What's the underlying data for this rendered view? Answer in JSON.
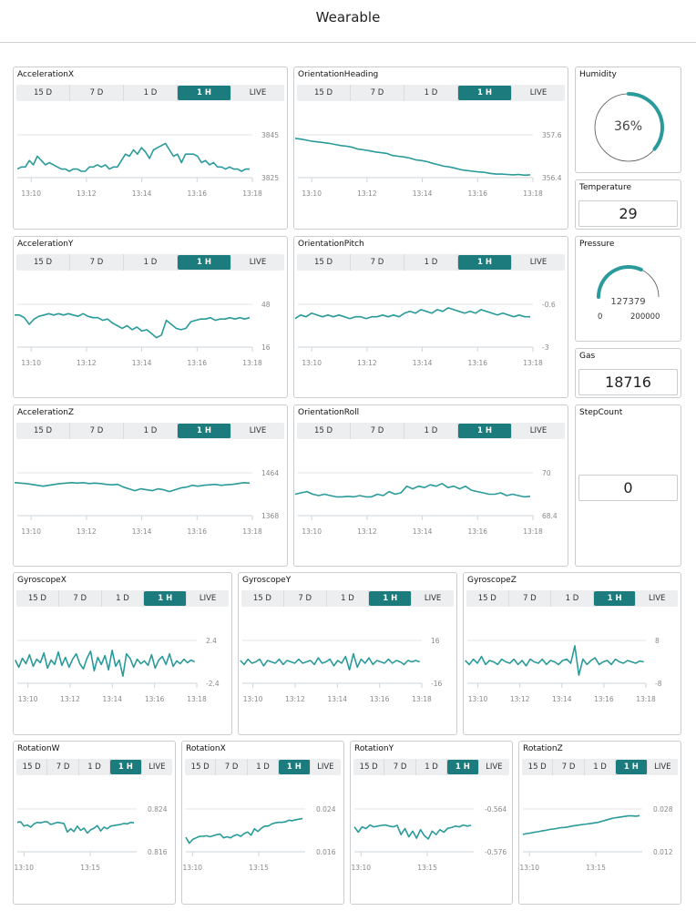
{
  "header": {
    "title": "Wearable"
  },
  "tabs": [
    "15 D",
    "7 D",
    "1 D",
    "1 H",
    "LIVE"
  ],
  "active_tab": "1 H",
  "colors": {
    "accent": "#1b7b7d",
    "line": "#2a9a9a",
    "grid": "#dfe3e5"
  },
  "charts": [
    {
      "title": "AccelerationX",
      "ymin_label": "3825",
      "ymax_label": "3845",
      "ylim": [
        3825,
        3845
      ],
      "xlim": [
        9.5,
        18
      ],
      "x_ticks": [
        "13:10",
        "13:12",
        "13:14",
        "13:16",
        "13:18"
      ],
      "x_tick_values": [
        10,
        12,
        14,
        16,
        18
      ],
      "x_range": [
        9.5,
        17.9
      ],
      "values": [
        3829,
        3830,
        3830,
        3833,
        3831,
        3835,
        3833,
        3831,
        3832,
        3831,
        3830,
        3829,
        3829,
        3828,
        3829,
        3829,
        3828,
        3828,
        3830,
        3830,
        3831,
        3830,
        3831,
        3829,
        3830,
        3830,
        3833,
        3836,
        3835,
        3838,
        3836,
        3839,
        3837,
        3834,
        3838,
        3839,
        3840,
        3841,
        3838,
        3835,
        3836,
        3832,
        3836,
        3836,
        3836,
        3835,
        3832,
        3833,
        3831,
        3832,
        3830,
        3830,
        3829,
        3830,
        3829,
        3829,
        3828,
        3829,
        3829
      ],
      "type": "line"
    },
    {
      "title": "OrientationHeading",
      "ymin_label": "356.4",
      "ymax_label": "357.6",
      "ylim": [
        356.4,
        357.6
      ],
      "xlim": [
        9.5,
        18
      ],
      "x_ticks": [
        "13:10",
        "13:12",
        "13:14",
        "13:16",
        "13:18"
      ],
      "x_tick_values": [
        10,
        12,
        14,
        16,
        18
      ],
      "x_range": [
        9.4,
        17.9
      ],
      "values": [
        357.5,
        357.48,
        357.45,
        357.42,
        357.4,
        357.38,
        357.36,
        357.33,
        357.3,
        357.28,
        357.25,
        357.2,
        357.18,
        357.15,
        357.12,
        357.1,
        357.08,
        357.02,
        357.0,
        356.98,
        356.95,
        356.9,
        356.88,
        356.85,
        356.8,
        356.76,
        356.72,
        356.7,
        356.66,
        356.62,
        356.6,
        356.58,
        356.56,
        356.55,
        356.52,
        356.5,
        356.5,
        356.49,
        356.48,
        356.49,
        356.47,
        356.48
      ],
      "type": "line"
    },
    {
      "title": "AccelerationY",
      "ymin_label": "16",
      "ymax_label": "48",
      "ylim": [
        16,
        48
      ],
      "xlim": [
        9.5,
        18
      ],
      "x_ticks": [
        "13:10",
        "13:12",
        "13:14",
        "13:16",
        "13:18"
      ],
      "x_tick_values": [
        10,
        12,
        14,
        16,
        18
      ],
      "x_range": [
        9.4,
        17.9
      ],
      "values": [
        40,
        40,
        38,
        33,
        37,
        39,
        40,
        41,
        40,
        41,
        40,
        41,
        40,
        39,
        41,
        39,
        38,
        38,
        36,
        37,
        34,
        32,
        30,
        32,
        29,
        31,
        28,
        29,
        26,
        23,
        25,
        36,
        33,
        30,
        29,
        30,
        35,
        36,
        37,
        37,
        38,
        36,
        37,
        37,
        38,
        37,
        38,
        37,
        38
      ],
      "type": "line"
    },
    {
      "title": "OrientationPitch",
      "ymin_label": "-3",
      "ymax_label": "-0.6",
      "ylim": [
        -3,
        -0.6
      ],
      "xlim": [
        9.5,
        18
      ],
      "x_ticks": [
        "13:10",
        "13:12",
        "13:14",
        "13:16",
        "13:18"
      ],
      "x_tick_values": [
        10,
        12,
        14,
        16,
        18
      ],
      "x_range": [
        9.4,
        17.9
      ],
      "values": [
        -1.4,
        -1.2,
        -1.3,
        -1.1,
        -1.2,
        -1.3,
        -1.2,
        -1.3,
        -1.2,
        -1.3,
        -1.4,
        -1.3,
        -1.3,
        -1.4,
        -1.3,
        -1.3,
        -1.2,
        -1.3,
        -1.2,
        -1.3,
        -1.1,
        -1.0,
        -1.1,
        -0.9,
        -1.0,
        -1.1,
        -0.9,
        -1.0,
        -0.8,
        -0.9,
        -1.0,
        -1.1,
        -1.0,
        -1.1,
        -0.9,
        -1.0,
        -1.1,
        -1.2,
        -1.1,
        -1.2,
        -1.3,
        -1.2,
        -1.3,
        -1.3
      ],
      "type": "line"
    },
    {
      "title": "AccelerationZ",
      "ymin_label": "1368",
      "ymax_label": "1464",
      "ylim": [
        1368,
        1464
      ],
      "xlim": [
        9.5,
        18
      ],
      "x_ticks": [
        "13:10",
        "13:12",
        "13:14",
        "13:16",
        "13:18"
      ],
      "x_tick_values": [
        10,
        12,
        14,
        16,
        18
      ],
      "x_range": [
        9.4,
        17.9
      ],
      "values": [
        1442,
        1441,
        1440,
        1438,
        1436,
        1434,
        1436,
        1438,
        1440,
        1441,
        1442,
        1441,
        1442,
        1440,
        1441,
        1440,
        1438,
        1437,
        1438,
        1432,
        1428,
        1424,
        1428,
        1426,
        1424,
        1428,
        1426,
        1422,
        1426,
        1430,
        1432,
        1436,
        1434,
        1436,
        1437,
        1438,
        1436,
        1437,
        1438,
        1440,
        1442,
        1441
      ],
      "type": "line"
    },
    {
      "title": "OrientationRoll",
      "ymin_label": "68.4",
      "ymax_label": "70",
      "ylim": [
        68.4,
        70
      ],
      "xlim": [
        9.5,
        18
      ],
      "x_ticks": [
        "13:10",
        "13:12",
        "13:14",
        "13:16",
        "13:18"
      ],
      "x_tick_values": [
        10,
        12,
        14,
        16,
        18
      ],
      "x_range": [
        9.4,
        17.9
      ],
      "values": [
        69.2,
        69.25,
        69.3,
        69.2,
        69.15,
        69.2,
        69.15,
        69.1,
        69.1,
        69.12,
        69.1,
        69.15,
        69.1,
        69.1,
        69.2,
        69.15,
        69.3,
        69.2,
        69.25,
        69.5,
        69.4,
        69.5,
        69.45,
        69.55,
        69.5,
        69.6,
        69.45,
        69.5,
        69.4,
        69.5,
        69.35,
        69.3,
        69.25,
        69.2,
        69.2,
        69.25,
        69.15,
        69.2,
        69.15,
        69.1,
        69.12
      ],
      "type": "line"
    },
    {
      "title": "GyroscopeX",
      "ymin_label": "-2.4",
      "ymax_label": "2.4",
      "ylim": [
        -2.4,
        2.4
      ],
      "xlim": [
        9.5,
        18
      ],
      "x_ticks": [
        "13:10",
        "13:12",
        "13:14",
        "13:16",
        "13:18"
      ],
      "x_tick_values": [
        10,
        12,
        14,
        16,
        18
      ],
      "x_range": [
        9.4,
        17.9
      ],
      "values": [
        0.2,
        -0.6,
        0.4,
        -0.2,
        0.8,
        -0.5,
        0.3,
        -0.1,
        1.0,
        -0.7,
        0.2,
        -0.3,
        1.1,
        -0.4,
        0.5,
        -0.6,
        0.3,
        0.9,
        -0.2,
        -0.8,
        0.4,
        1.2,
        -1.0,
        0.5,
        -0.3,
        0.7,
        -0.9,
        1.3,
        -0.5,
        0.2,
        -1.6,
        0.9,
        0.4,
        -0.6,
        0.3,
        -0.2,
        0.1,
        -0.4,
        0.8,
        -0.7,
        0.2,
        0.6,
        -0.3,
        0.9,
        -0.5,
        0.1,
        -0.2,
        0.3,
        -0.1,
        0.2,
        0.0
      ],
      "type": "line"
    },
    {
      "title": "GyroscopeY",
      "ymin_label": "-16",
      "ymax_label": "16",
      "ylim": [
        -16,
        16
      ],
      "xlim": [
        9.5,
        18
      ],
      "x_ticks": [
        "13:10",
        "13:12",
        "13:14",
        "13:16",
        "13:18"
      ],
      "x_tick_values": [
        10,
        12,
        14,
        16,
        18
      ],
      "x_range": [
        9.4,
        17.9
      ],
      "values": [
        1,
        -2,
        2,
        -1,
        0,
        2,
        -3,
        1,
        0,
        -1,
        2,
        -2,
        1,
        0,
        -1,
        2,
        -1,
        0,
        1,
        -2,
        3,
        -1,
        0,
        2,
        -3,
        1,
        -1,
        4,
        -6,
        6,
        -4,
        2,
        -1,
        3,
        -2,
        1,
        0,
        -1,
        2,
        -1,
        1,
        0,
        -2,
        1,
        0,
        1,
        0
      ],
      "type": "line"
    },
    {
      "title": "GyroscopeZ",
      "ymin_label": "-8",
      "ymax_label": "8",
      "ylim": [
        -8,
        8
      ],
      "xlim": [
        9.5,
        18
      ],
      "x_ticks": [
        "13:10",
        "13:12",
        "13:14",
        "13:16",
        "13:18"
      ],
      "x_tick_values": [
        10,
        12,
        14,
        16,
        18
      ],
      "x_range": [
        9.4,
        17.9
      ],
      "values": [
        0.5,
        -1,
        1,
        -0.5,
        2,
        -1,
        0.5,
        0,
        -1,
        1,
        0,
        -0.5,
        1,
        -1,
        0.5,
        -1.5,
        1,
        0,
        -0.5,
        1,
        -1,
        0.5,
        0,
        -1,
        0.5,
        1,
        -0.5,
        6,
        -5,
        1,
        -1,
        0.5,
        1.5,
        -1,
        0,
        0.5,
        -1,
        1,
        0,
        -0.5,
        0.5,
        0,
        -0.5,
        0.3,
        0
      ],
      "type": "line"
    },
    {
      "title": "RotationW",
      "ymin_label": "0.816",
      "ymax_label": "0.824",
      "ylim": [
        0.816,
        0.824
      ],
      "xlim": [
        9.5,
        18.5
      ],
      "x_ticks": [
        "13:10",
        "13:15"
      ],
      "x_tick_values": [
        10,
        15
      ],
      "x_range": [
        9.5,
        18.3
      ],
      "values": [
        0.8215,
        0.8216,
        0.8208,
        0.821,
        0.8206,
        0.8212,
        0.8215,
        0.8214,
        0.8216,
        0.8216,
        0.8211,
        0.8213,
        0.8215,
        0.8214,
        0.8213,
        0.8197,
        0.8203,
        0.8198,
        0.8208,
        0.82,
        0.8204,
        0.8195,
        0.8201,
        0.8204,
        0.8209,
        0.8199,
        0.8206,
        0.8203,
        0.8208,
        0.8209,
        0.821,
        0.8211,
        0.8213,
        0.8212,
        0.8215,
        0.8214
      ],
      "type": "line"
    },
    {
      "title": "RotationX",
      "ymin_label": "0.016",
      "ymax_label": "0.024",
      "ylim": [
        0.016,
        0.024
      ],
      "xlim": [
        9.5,
        18.5
      ],
      "x_ticks": [
        "13:10",
        "13:15"
      ],
      "x_tick_values": [
        10,
        15
      ],
      "x_range": [
        9.5,
        18.3
      ],
      "values": [
        0.0187,
        0.0176,
        0.0183,
        0.0186,
        0.0189,
        0.0189,
        0.019,
        0.0188,
        0.019,
        0.0192,
        0.0193,
        0.0186,
        0.0188,
        0.0186,
        0.019,
        0.0192,
        0.0189,
        0.0194,
        0.0197,
        0.0191,
        0.0203,
        0.0198,
        0.0204,
        0.0208,
        0.0208,
        0.0212,
        0.0214,
        0.0215,
        0.0215,
        0.0216,
        0.0219,
        0.0218,
        0.022,
        0.0221,
        0.0222
      ],
      "type": "line"
    },
    {
      "title": "RotationY",
      "ymin_label": "-0.564",
      "ymax_label": "-0.576",
      "ylim": [
        -0.576,
        -0.564
      ],
      "xlim": [
        9.5,
        18.5
      ],
      "x_ticks": [
        "13:10",
        "13:15"
      ],
      "x_tick_values": [
        10,
        15
      ],
      "x_range": [
        9.5,
        18.3
      ],
      "values": [
        -0.569,
        -0.5705,
        -0.569,
        -0.5695,
        -0.5685,
        -0.569,
        -0.5688,
        -0.5686,
        -0.5685,
        -0.5688,
        -0.569,
        -0.5686,
        -0.5712,
        -0.5695,
        -0.5718,
        -0.5702,
        -0.5722,
        -0.5698,
        -0.5715,
        -0.5724,
        -0.5702,
        -0.5712,
        -0.5698,
        -0.5705,
        -0.5694,
        -0.5692,
        -0.5688,
        -0.569,
        -0.5685,
        -0.5688,
        -0.5686
      ],
      "type": "line"
    },
    {
      "title": "RotationZ",
      "ymin_label": "0.012",
      "ymax_label": "0.028",
      "ylim": [
        0.012,
        0.028
      ],
      "xlim": [
        9.5,
        18.5
      ],
      "x_ticks": [
        "13:10",
        "13:15"
      ],
      "x_tick_values": [
        10,
        15
      ],
      "x_range": [
        9.5,
        18.3
      ],
      "values": [
        0.0185,
        0.0188,
        0.019,
        0.0193,
        0.0195,
        0.0198,
        0.02,
        0.0203,
        0.0205,
        0.0207,
        0.021,
        0.0211,
        0.0213,
        0.0216,
        0.0218,
        0.022,
        0.0222,
        0.0224,
        0.0226,
        0.0228,
        0.023,
        0.0234,
        0.0238,
        0.0242,
        0.0246,
        0.0248,
        0.025,
        0.0252,
        0.0254,
        0.0254,
        0.0253,
        0.0255
      ],
      "type": "line"
    }
  ],
  "humidity": {
    "title": "Humidity",
    "value": 36,
    "display": "36%"
  },
  "temperature": {
    "title": "Temperature",
    "value": "29"
  },
  "pressure": {
    "title": "Pressure",
    "value": 127379,
    "display": "127379",
    "min": "0",
    "max": "200000",
    "min_value": 0,
    "max_value": 200000
  },
  "gas": {
    "title": "Gas",
    "value": "18716"
  },
  "stepcount": {
    "title": "StepCount",
    "value": "0"
  }
}
